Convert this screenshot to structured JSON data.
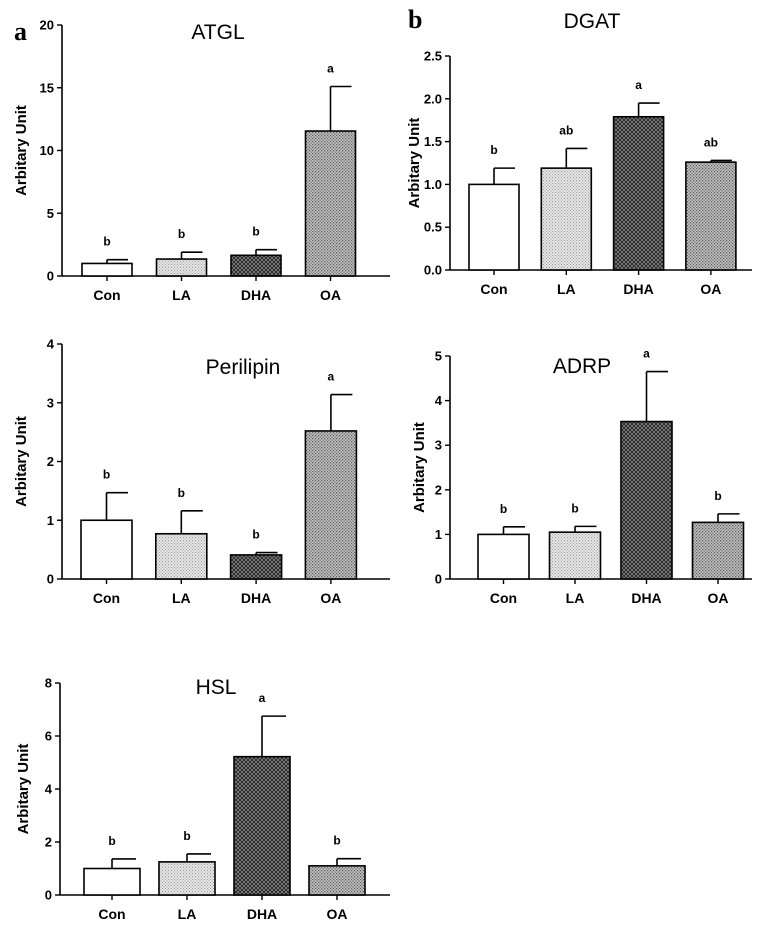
{
  "panels": {
    "a": "a",
    "b": "b"
  },
  "colors": {
    "con": "#ffffff",
    "la": "#d9d9d9",
    "dha": "#6e6e6e",
    "oa": "#b0b0b0",
    "axis": "#000000"
  },
  "chart_data": [
    {
      "id": "atgl",
      "type": "bar",
      "title": "ATGL",
      "ylabel": "Arbitary Unit",
      "xlabel": "",
      "categories": [
        "Con",
        "LA",
        "DHA",
        "OA"
      ],
      "values": [
        1.0,
        1.35,
        1.65,
        11.55
      ],
      "errors": [
        0.3,
        0.55,
        0.45,
        3.55
      ],
      "labels": [
        "b",
        "b",
        "b",
        "a"
      ],
      "ylim": [
        0,
        20
      ],
      "yticks": [
        0,
        5,
        10,
        15,
        20
      ],
      "ytick_labels": [
        "0",
        "5",
        "10",
        "15",
        "20"
      ]
    },
    {
      "id": "dgat",
      "type": "bar",
      "title": "DGAT",
      "ylabel": "Arbitary Unit",
      "xlabel": "",
      "categories": [
        "Con",
        "LA",
        "DHA",
        "OA"
      ],
      "values": [
        1.0,
        1.19,
        1.79,
        1.26
      ],
      "errors": [
        0.19,
        0.23,
        0.16,
        0.02
      ],
      "labels": [
        "b",
        "ab",
        "a",
        "ab"
      ],
      "ylim": [
        0,
        2.5
      ],
      "yticks": [
        0,
        0.5,
        1,
        1.5,
        2,
        2.5
      ],
      "ytick_labels": [
        "0.0",
        "0.5",
        "1.0",
        "1.5",
        "2.0",
        "2.5"
      ]
    },
    {
      "id": "perilipin",
      "type": "bar",
      "title": "Perilipin",
      "ylabel": "Arbitary Unit",
      "xlabel": "",
      "categories": [
        "Con",
        "LA",
        "DHA",
        "OA"
      ],
      "values": [
        1.0,
        0.77,
        0.41,
        2.52
      ],
      "errors": [
        0.47,
        0.39,
        0.04,
        0.62
      ],
      "labels": [
        "b",
        "b",
        "b",
        "a"
      ],
      "ylim": [
        0,
        4
      ],
      "yticks": [
        0,
        1,
        2,
        3,
        4
      ],
      "ytick_labels": [
        "0",
        "1",
        "2",
        "3",
        "4"
      ]
    },
    {
      "id": "adrp",
      "type": "bar",
      "title": "ADRP",
      "ylabel": "Arbitary Unit",
      "xlabel": "",
      "categories": [
        "Con",
        "LA",
        "DHA",
        "OA"
      ],
      "values": [
        1.0,
        1.05,
        3.53,
        1.27
      ],
      "errors": [
        0.17,
        0.13,
        1.12,
        0.19
      ],
      "labels": [
        "b",
        "b",
        "a",
        "b"
      ],
      "ylim": [
        0,
        5
      ],
      "yticks": [
        0,
        1,
        2,
        3,
        4,
        5
      ],
      "ytick_labels": [
        "0",
        "1",
        "2",
        "3",
        "4",
        "5"
      ]
    },
    {
      "id": "hsl",
      "type": "bar",
      "title": "HSL",
      "ylabel": "Arbitary Unit",
      "xlabel": "",
      "categories": [
        "Con",
        "LA",
        "DHA",
        "OA"
      ],
      "values": [
        1.0,
        1.25,
        5.22,
        1.1
      ],
      "errors": [
        0.36,
        0.3,
        1.53,
        0.27
      ],
      "labels": [
        "b",
        "b",
        "a",
        "b"
      ],
      "ylim": [
        0,
        8
      ],
      "yticks": [
        0,
        2,
        4,
        6,
        8
      ],
      "ytick_labels": [
        "0",
        "2",
        "4",
        "6",
        "8"
      ]
    }
  ]
}
